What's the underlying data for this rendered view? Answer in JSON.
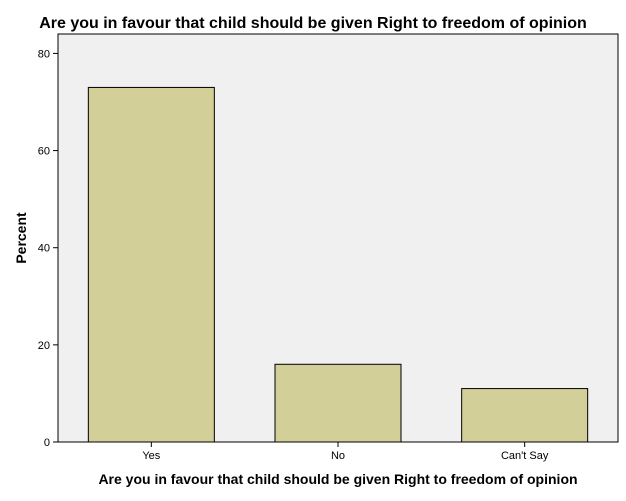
{
  "chart_data": {
    "type": "bar",
    "title": "Are you in favour that child should be given Right to freedom of opinion",
    "xlabel": "Are you in favour that child should be given Right to freedom of opinion",
    "ylabel": "Percent",
    "categories": [
      "Yes",
      "No",
      "Can't Say"
    ],
    "values": [
      73,
      16,
      11
    ],
    "ylim": [
      0,
      84
    ],
    "yticks": [
      "0",
      "20",
      "40",
      "60",
      "80"
    ],
    "grid": false,
    "legend": "none",
    "colors": {
      "bar_fill": "#d3cf98",
      "bar_stroke": "#000000",
      "plot_background": "#f0f0f0"
    }
  }
}
